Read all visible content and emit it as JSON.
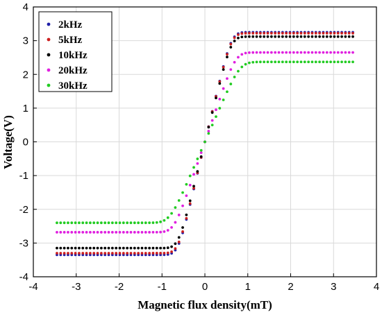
{
  "chart_data": {
    "type": "scatter",
    "title": "",
    "xlabel": "Magnetic flux density(mT)",
    "ylabel": "Voltage(V)",
    "xlim": [
      -4,
      4
    ],
    "ylim": [
      -4,
      4
    ],
    "xticks": [
      -4,
      -3,
      -2,
      -1,
      0,
      1,
      2,
      3,
      4
    ],
    "yticks": [
      -4,
      -3,
      -2,
      -1,
      0,
      1,
      2,
      3,
      4
    ],
    "grid": true,
    "legend_position": "top-left",
    "x_range": [
      -3.45,
      3.45
    ],
    "point_count": 81,
    "series": [
      {
        "name": "2kHz",
        "color": "#1f1fa8",
        "sat_pos": 3.25,
        "sat_neg": -3.35,
        "knee": 0.62
      },
      {
        "name": "5kHz",
        "color": "#cc1f1f",
        "sat_pos": 3.22,
        "sat_neg": -3.3,
        "knee": 0.62
      },
      {
        "name": "10kHz",
        "color": "#000000",
        "sat_pos": 3.12,
        "sat_neg": -3.15,
        "knee": 0.62
      },
      {
        "name": "20kHz",
        "color": "#e020e0",
        "sat_pos": 2.65,
        "sat_neg": -2.68,
        "knee": 0.72
      },
      {
        "name": "30kHz",
        "color": "#22cc22",
        "sat_pos": 2.37,
        "sat_neg": -2.4,
        "knee": 0.82
      }
    ]
  }
}
